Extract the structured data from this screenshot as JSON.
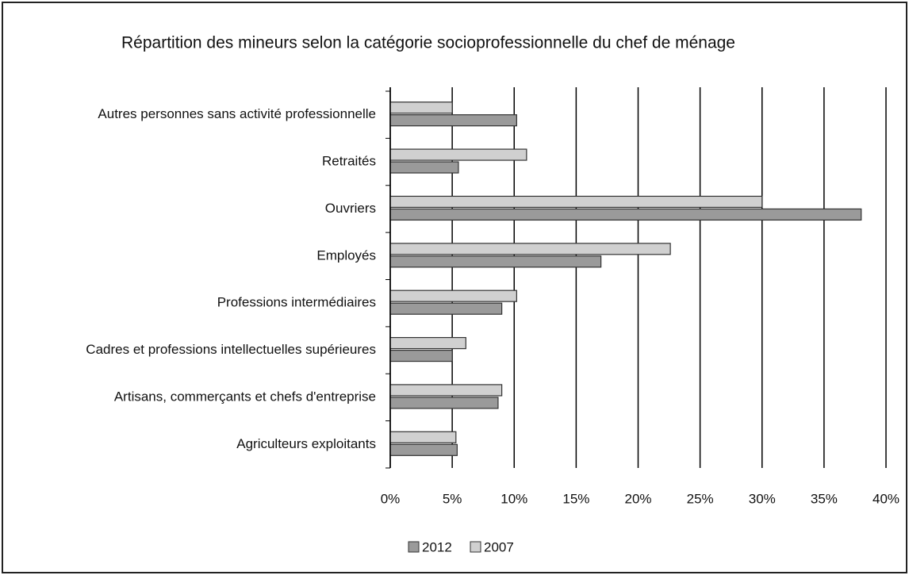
{
  "chart_data": {
    "type": "bar",
    "orientation": "horizontal",
    "title": "Répartition des mineurs selon la catégorie socioprofessionnelle du chef de ménage",
    "categories": [
      "Agriculteurs exploitants",
      "Artisans, commerçants et chefs d'entreprise",
      "Cadres et professions intellectuelles supérieures",
      "Professions intermédiaires",
      "Employés",
      "Ouvriers",
      "Retraités",
      "Autres personnes sans activité professionnelle"
    ],
    "series": [
      {
        "name": "2012",
        "color": "#9a9a9a",
        "values": [
          5.4,
          8.7,
          5,
          9,
          17,
          38,
          5.5,
          10.2
        ]
      },
      {
        "name": "2007",
        "color": "#d0d0d0",
        "values": [
          5.3,
          9,
          6.1,
          10.2,
          22.6,
          30,
          11,
          5
        ]
      }
    ],
    "xlim": [
      0,
      40
    ],
    "xticks": [
      {
        "value": 0,
        "label": "0%"
      },
      {
        "value": 5,
        "label": "5%"
      },
      {
        "value": 10,
        "label": "10%"
      },
      {
        "value": 15,
        "label": "15%"
      },
      {
        "value": 20,
        "label": "20%"
      },
      {
        "value": 25,
        "label": "25%"
      },
      {
        "value": 30,
        "label": "30%"
      },
      {
        "value": 35,
        "label": "35%"
      },
      {
        "value": 40,
        "label": "40%"
      }
    ],
    "grid": true,
    "legend": "bottom"
  }
}
